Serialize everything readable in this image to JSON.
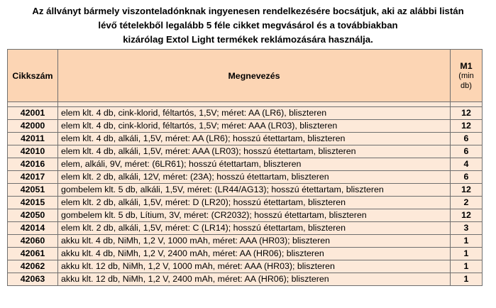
{
  "intro": {
    "line1": "Az állványt bármely viszonteladónknak ingyenesen rendelkezésére bocsátjuk, aki az alábbi listán",
    "line2": "lévő tételekből legalább 5 féle cikket megvásárol és a továbbiakban",
    "line3": "kizárólag Extol Light termékek reklámozására használja."
  },
  "table": {
    "headers": {
      "code": "Cikkszám",
      "name": "Megnevezés",
      "m1": "M1",
      "m1_sub1": "(min",
      "m1_sub2": "db)"
    },
    "rows": [
      {
        "code": "42001",
        "name": "elem klt. 4 db, cink-klorid, féltartós, 1,5V; méret: AA (LR6), bliszteren",
        "qty": "12"
      },
      {
        "code": "42000",
        "name": "elem klt. 4 db, cink-klorid, féltartós, 1,5V; méret: AAA (LR03), bliszteren",
        "qty": "12"
      },
      {
        "code": "42011",
        "name": "elem klt. 4 db, alkáli, 1,5V, méret: AA (LR6); hosszú étettartam, bliszteren",
        "qty": "6"
      },
      {
        "code": "42010",
        "name": "elem klt. 4 db, alkáli, 1,5V, méret: AAA (LR03); hosszú étettartam, bliszteren",
        "qty": "6"
      },
      {
        "code": "42016",
        "name": "elem, alkáli, 9V, méret: (6LR61); hosszú étettartam, bliszteren",
        "qty": "4"
      },
      {
        "code": "42017",
        "name": "elem klt. 2 db, alkáli, 12V, méret: (23A); hosszú étettartam, bliszteren",
        "qty": "6"
      },
      {
        "code": "42051",
        "name": "gombelem klt. 5 db, alkáli, 1,5V, méret: (LR44/AG13); hosszú étettartam, bliszteren",
        "qty": "12"
      },
      {
        "code": "42015",
        "name": "elem klt. 2 db, alkáli, 1,5V, méret: D (LR20); hosszú étettartam, bliszteren",
        "qty": "2"
      },
      {
        "code": "42050",
        "name": "gombelem klt. 5 db, Lítium, 3V, méret: (CR2032); hosszú étettartam, bliszteren",
        "qty": "12"
      },
      {
        "code": "42014",
        "name": "elem klt. 2 db, alkáli, 1,5V, méret: C (LR14); hosszú étettartam, bliszteren",
        "qty": "3"
      },
      {
        "code": "42060",
        "name": "akku klt. 4 db, NiMh, 1,2 V, 1000 mAh, méret: AAA (HR03); bliszteren",
        "qty": "1"
      },
      {
        "code": "42061",
        "name": "akku klt. 4 db, NiMh, 1,2 V, 2400 mAh, méret: AA (HR06); bliszteren",
        "qty": "1"
      },
      {
        "code": "42062",
        "name": "akku klt. 12 db, NiMh, 1,2 V, 1000 mAh, méret: AAA (HR03); bliszteren",
        "qty": "1"
      },
      {
        "code": "42063",
        "name": "akku klt. 12 db, NiMh, 1,2 V, 2400 mAh, méret: AA (HR06); bliszteren",
        "qty": "1"
      }
    ]
  },
  "colors": {
    "header_bg": "#fcd5b4",
    "row_bg": "#fde9d9",
    "border": "#6f6f6f"
  }
}
